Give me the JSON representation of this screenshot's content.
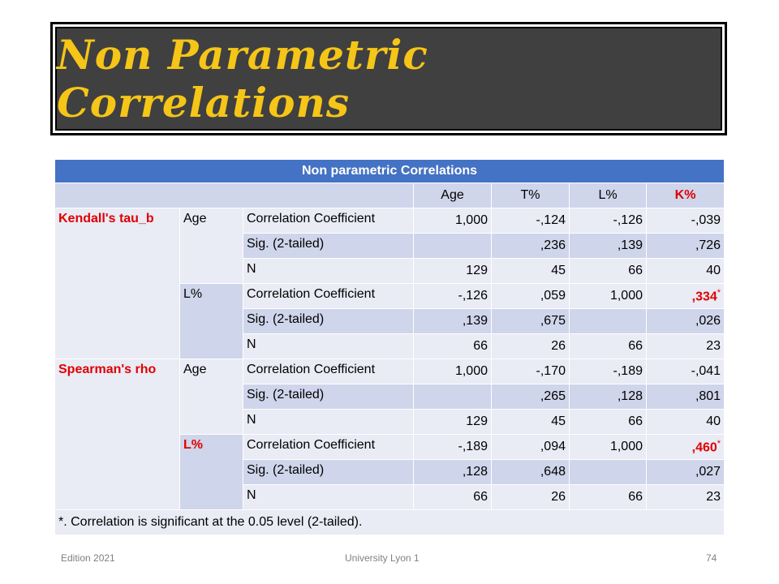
{
  "slide": {
    "title": "Non Parametric Correlations",
    "footer_left": "Edition 2021",
    "footer_center": "University Lyon 1",
    "footer_right": "74"
  },
  "table": {
    "caption": "Non parametric Correlations",
    "columns": [
      "Age",
      "T%",
      "L%",
      "K%"
    ],
    "groups": [
      {
        "method": "Kendall's tau_b",
        "vars": [
          {
            "name": "Age",
            "rows": [
              {
                "stat": "Correlation Coefficient",
                "values": [
                  "1,000",
                  "-,124",
                  "-,126",
                  "-,039"
                ]
              },
              {
                "stat": "Sig. (2-tailed)",
                "values": [
                  "",
                  ",236",
                  ",139",
                  ",726"
                ]
              },
              {
                "stat": "N",
                "values": [
                  "129",
                  "45",
                  "66",
                  "40"
                ]
              }
            ]
          },
          {
            "name": "L%",
            "rows": [
              {
                "stat": "Correlation Coefficient",
                "values": [
                  "-,126",
                  ",059",
                  "1,000",
                  ",334"
                ],
                "sig_mark": "*"
              },
              {
                "stat": "Sig. (2-tailed)",
                "values": [
                  ",139",
                  ",675",
                  "",
                  ",026"
                ]
              },
              {
                "stat": "N",
                "values": [
                  "66",
                  "26",
                  "66",
                  "23"
                ]
              }
            ]
          }
        ]
      },
      {
        "method": "Spearman's rho",
        "vars": [
          {
            "name": "Age",
            "rows": [
              {
                "stat": "Correlation Coefficient",
                "values": [
                  "1,000",
                  "-,170",
                  "-,189",
                  "-,041"
                ]
              },
              {
                "stat": "Sig. (2-tailed)",
                "values": [
                  "",
                  ",265",
                  ",128",
                  ",801"
                ]
              },
              {
                "stat": "N",
                "values": [
                  "129",
                  "45",
                  "66",
                  "40"
                ]
              }
            ]
          },
          {
            "name": "L%",
            "rows": [
              {
                "stat": "Correlation Coefficient",
                "values": [
                  "-,189",
                  ",094",
                  "1,000",
                  ",460"
                ],
                "sig_mark": "*"
              },
              {
                "stat": "Sig. (2-tailed)",
                "values": [
                  ",128",
                  ",648",
                  "",
                  ",027"
                ]
              },
              {
                "stat": "N",
                "values": [
                  "66",
                  "26",
                  "66",
                  "23"
                ]
              }
            ]
          }
        ]
      }
    ],
    "footnote": "*. Correlation is significant at the 0.05 level (2-tailed)."
  },
  "colors": {
    "title_text": "#f5c518",
    "title_bg": "#404040",
    "header_bg": "#4472c4",
    "highlight": "#e00000"
  }
}
